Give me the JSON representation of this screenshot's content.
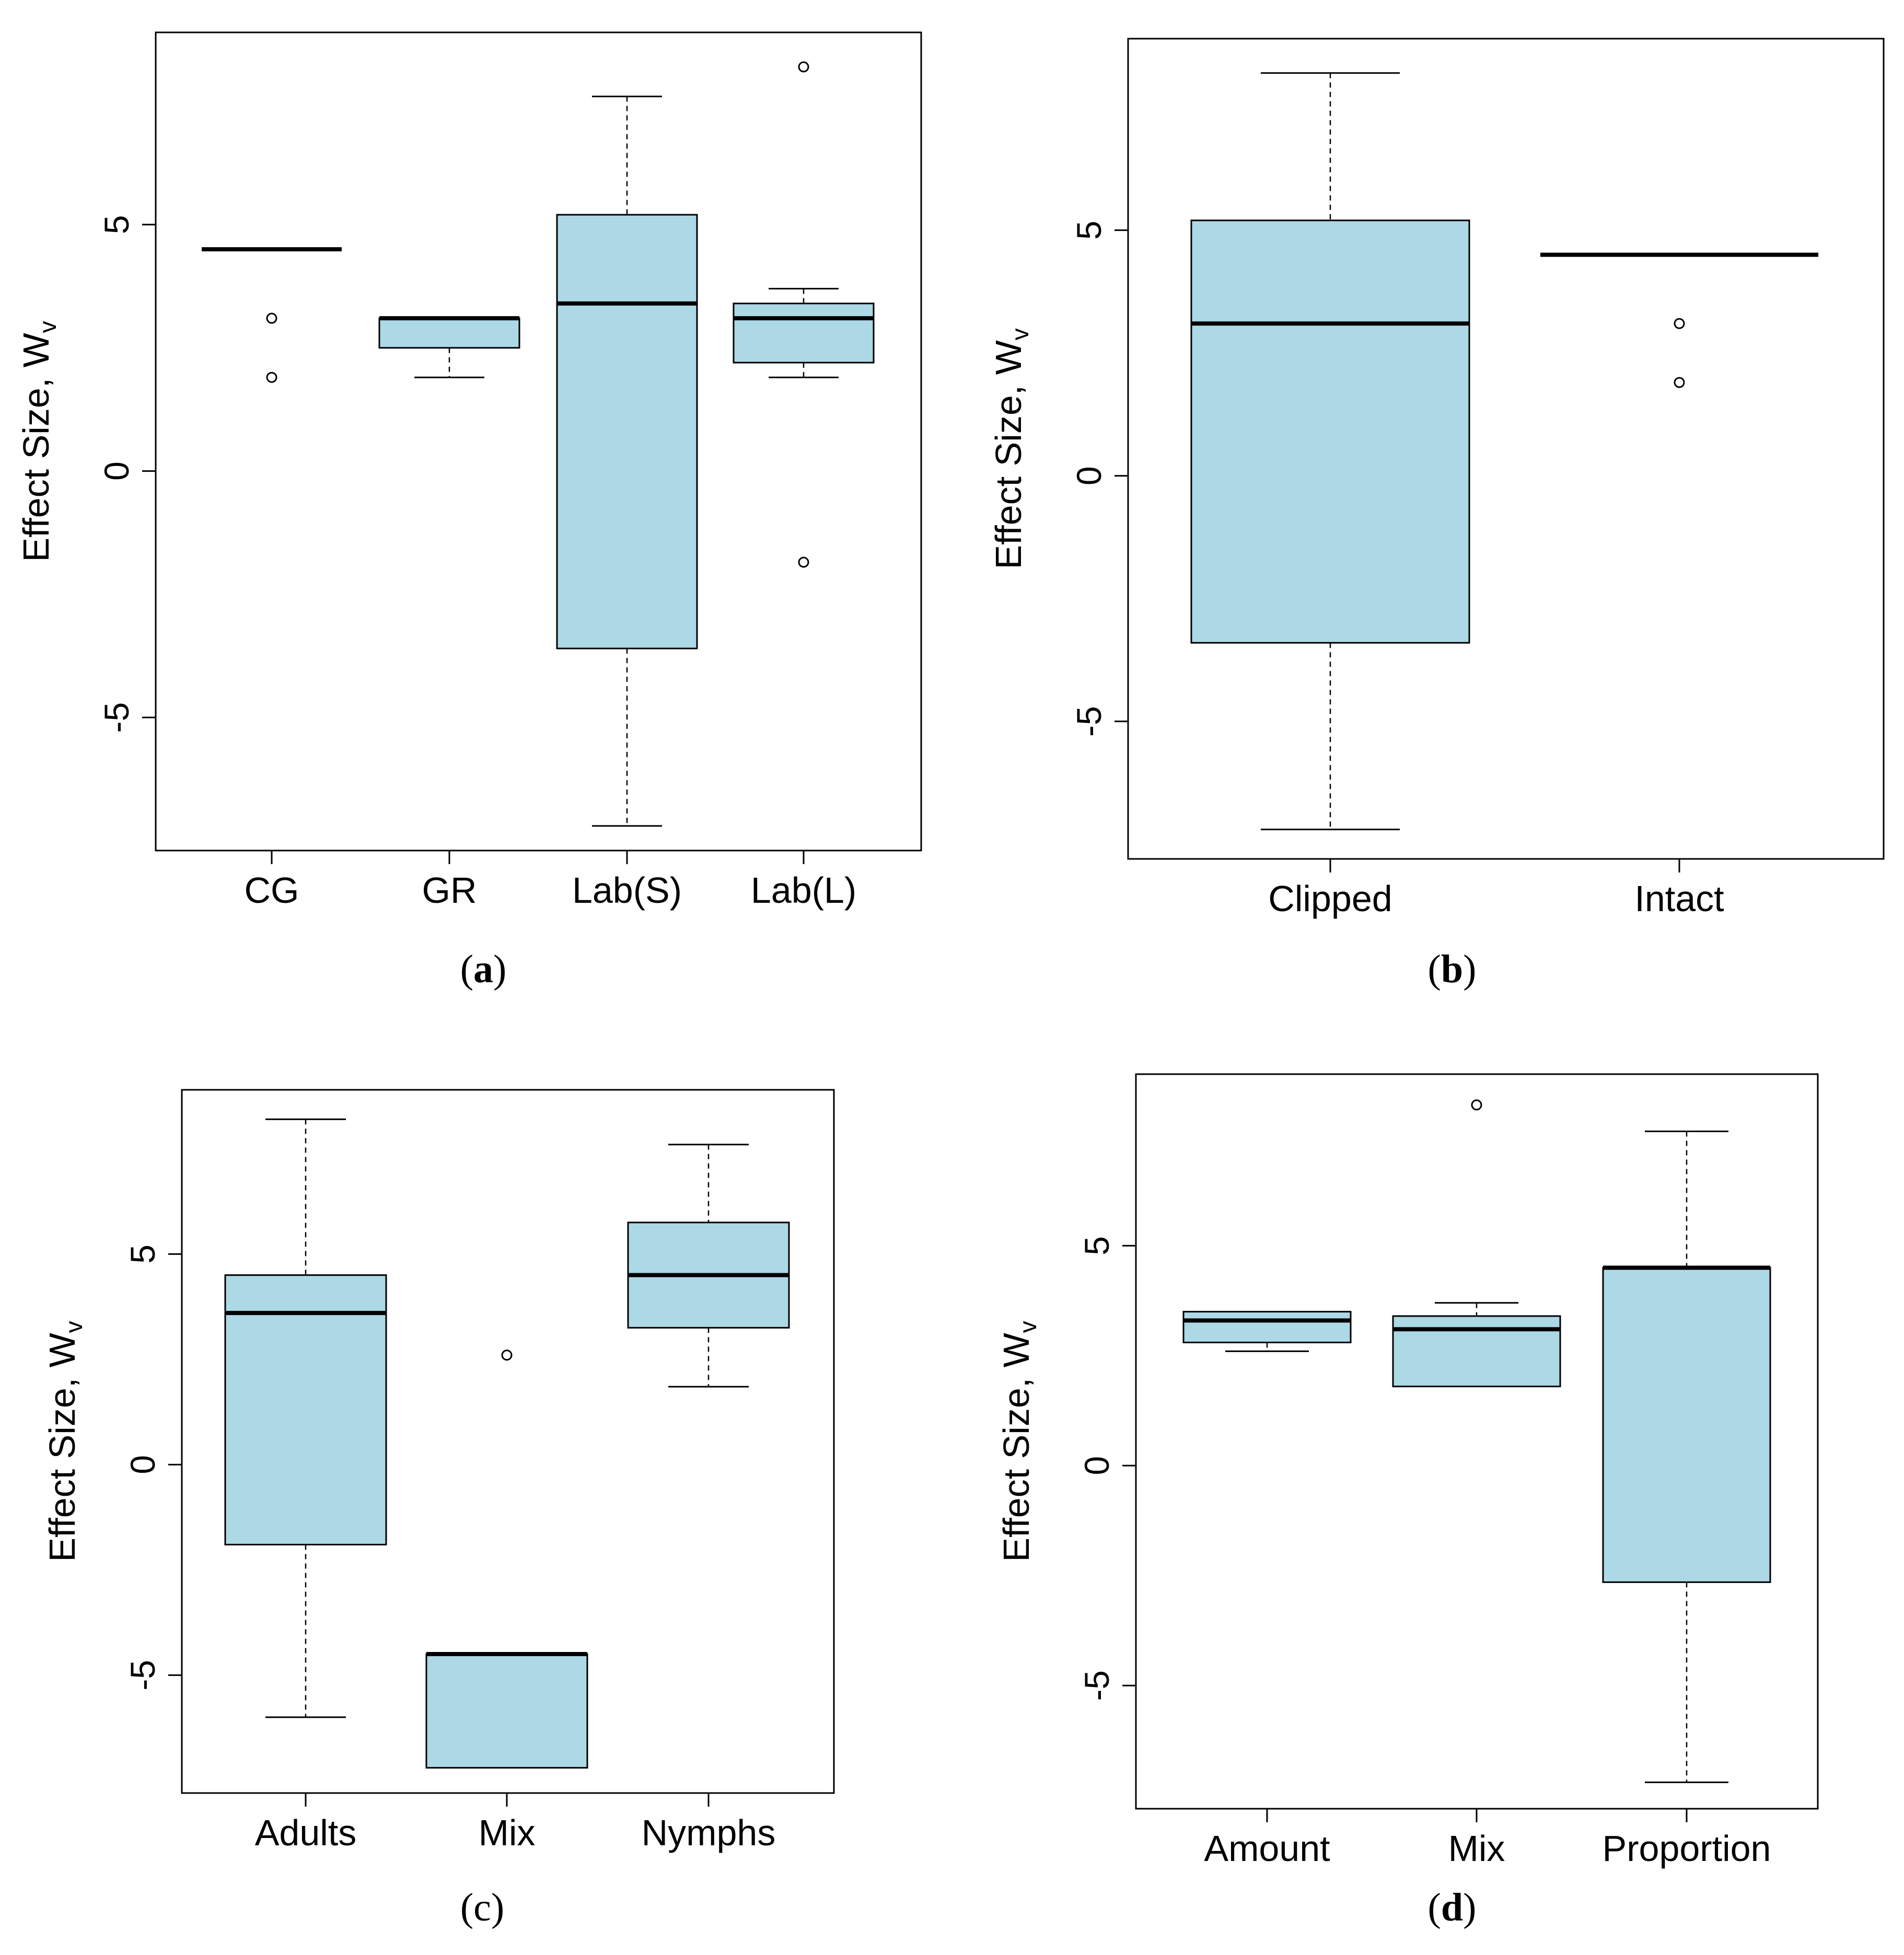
{
  "figure": {
    "box_fill": "#add8e6",
    "stroke": "#000000",
    "background": "#ffffff"
  },
  "chart_data": [
    {
      "id": "a",
      "type": "boxplot",
      "caption": {
        "open": "(",
        "letter": "a",
        "close": ")",
        "bold": true
      },
      "ylabel": "Effect Size, W",
      "ylabel_sub": "v",
      "ylim": [
        -7.7,
        8.9
      ],
      "yticks": [
        -5,
        0,
        5
      ],
      "ytick_labels": [
        "-5",
        "0",
        "5"
      ],
      "categories": [
        "CG",
        "GR",
        "Lab(S)",
        "Lab(L)"
      ],
      "boxes": [
        {
          "whisker_low": 4.5,
          "q1": 4.5,
          "median": 4.5,
          "q3": 4.5,
          "whisker_high": 4.5,
          "outliers": [
            3.1,
            1.9
          ]
        },
        {
          "whisker_low": 1.9,
          "q1": 2.5,
          "median": 3.1,
          "q3": 3.1,
          "whisker_high": 3.1,
          "outliers": []
        },
        {
          "whisker_low": -7.2,
          "q1": -3.6,
          "median": 3.4,
          "q3": 5.2,
          "whisker_high": 7.6,
          "outliers": []
        },
        {
          "whisker_low": 1.9,
          "q1": 2.2,
          "median": 3.1,
          "q3": 3.4,
          "whisker_high": 3.7,
          "outliers": [
            8.2,
            -1.85
          ]
        }
      ]
    },
    {
      "id": "b",
      "type": "boxplot",
      "caption": {
        "open": "(",
        "letter": "b",
        "close": ")",
        "bold": true
      },
      "ylabel": "Effect Size, W",
      "ylabel_sub": "v",
      "ylim": [
        -7.8,
        8.9
      ],
      "yticks": [
        -5,
        0,
        5
      ],
      "ytick_labels": [
        "-5",
        "0",
        "5"
      ],
      "categories": [
        "Clipped",
        "Intact"
      ],
      "boxes": [
        {
          "whisker_low": -7.2,
          "q1": -3.4,
          "median": 3.1,
          "q3": 5.2,
          "whisker_high": 8.2,
          "outliers": []
        },
        {
          "whisker_low": 4.5,
          "q1": 4.5,
          "median": 4.5,
          "q3": 4.5,
          "whisker_high": 4.5,
          "outliers": [
            3.1,
            1.9
          ]
        }
      ]
    },
    {
      "id": "c",
      "type": "boxplot",
      "caption": {
        "open": "(",
        "letter": "c",
        "close": ")",
        "bold": false
      },
      "ylabel": "Effect Size, W",
      "ylabel_sub": "v",
      "ylim": [
        -7.8,
        8.9
      ],
      "yticks": [
        -5,
        0,
        5
      ],
      "ytick_labels": [
        "-5",
        "0",
        "5"
      ],
      "categories": [
        "Adults",
        "Mix",
        "Nymphs"
      ],
      "boxes": [
        {
          "whisker_low": -6.0,
          "q1": -1.9,
          "median": 3.6,
          "q3": 4.5,
          "whisker_high": 8.2,
          "outliers": []
        },
        {
          "whisker_low": -7.2,
          "q1": -7.2,
          "median": -4.5,
          "q3": -4.5,
          "whisker_high": -4.5,
          "outliers": [
            2.6
          ]
        },
        {
          "whisker_low": 1.85,
          "q1": 3.25,
          "median": 4.5,
          "q3": 5.75,
          "whisker_high": 7.6,
          "outliers": []
        }
      ]
    },
    {
      "id": "d",
      "type": "boxplot",
      "caption": {
        "open": "(",
        "letter": "d",
        "close": ")",
        "bold": true
      },
      "ylabel": "Effect Size, W",
      "ylabel_sub": "v",
      "ylim": [
        -7.8,
        8.9
      ],
      "yticks": [
        -5,
        0,
        5
      ],
      "ytick_labels": [
        "-5",
        "0",
        "5"
      ],
      "categories": [
        "Amount",
        "Mix",
        "Proportion"
      ],
      "boxes": [
        {
          "whisker_low": 2.6,
          "q1": 2.8,
          "median": 3.3,
          "q3": 3.5,
          "whisker_high": 3.5,
          "outliers": []
        },
        {
          "whisker_low": 1.8,
          "q1": 1.8,
          "median": 3.1,
          "q3": 3.4,
          "whisker_high": 3.7,
          "outliers": [
            8.2
          ]
        },
        {
          "whisker_low": -7.2,
          "q1": -2.65,
          "median": 4.5,
          "q3": 4.5,
          "whisker_high": 7.6,
          "outliers": []
        }
      ]
    }
  ]
}
